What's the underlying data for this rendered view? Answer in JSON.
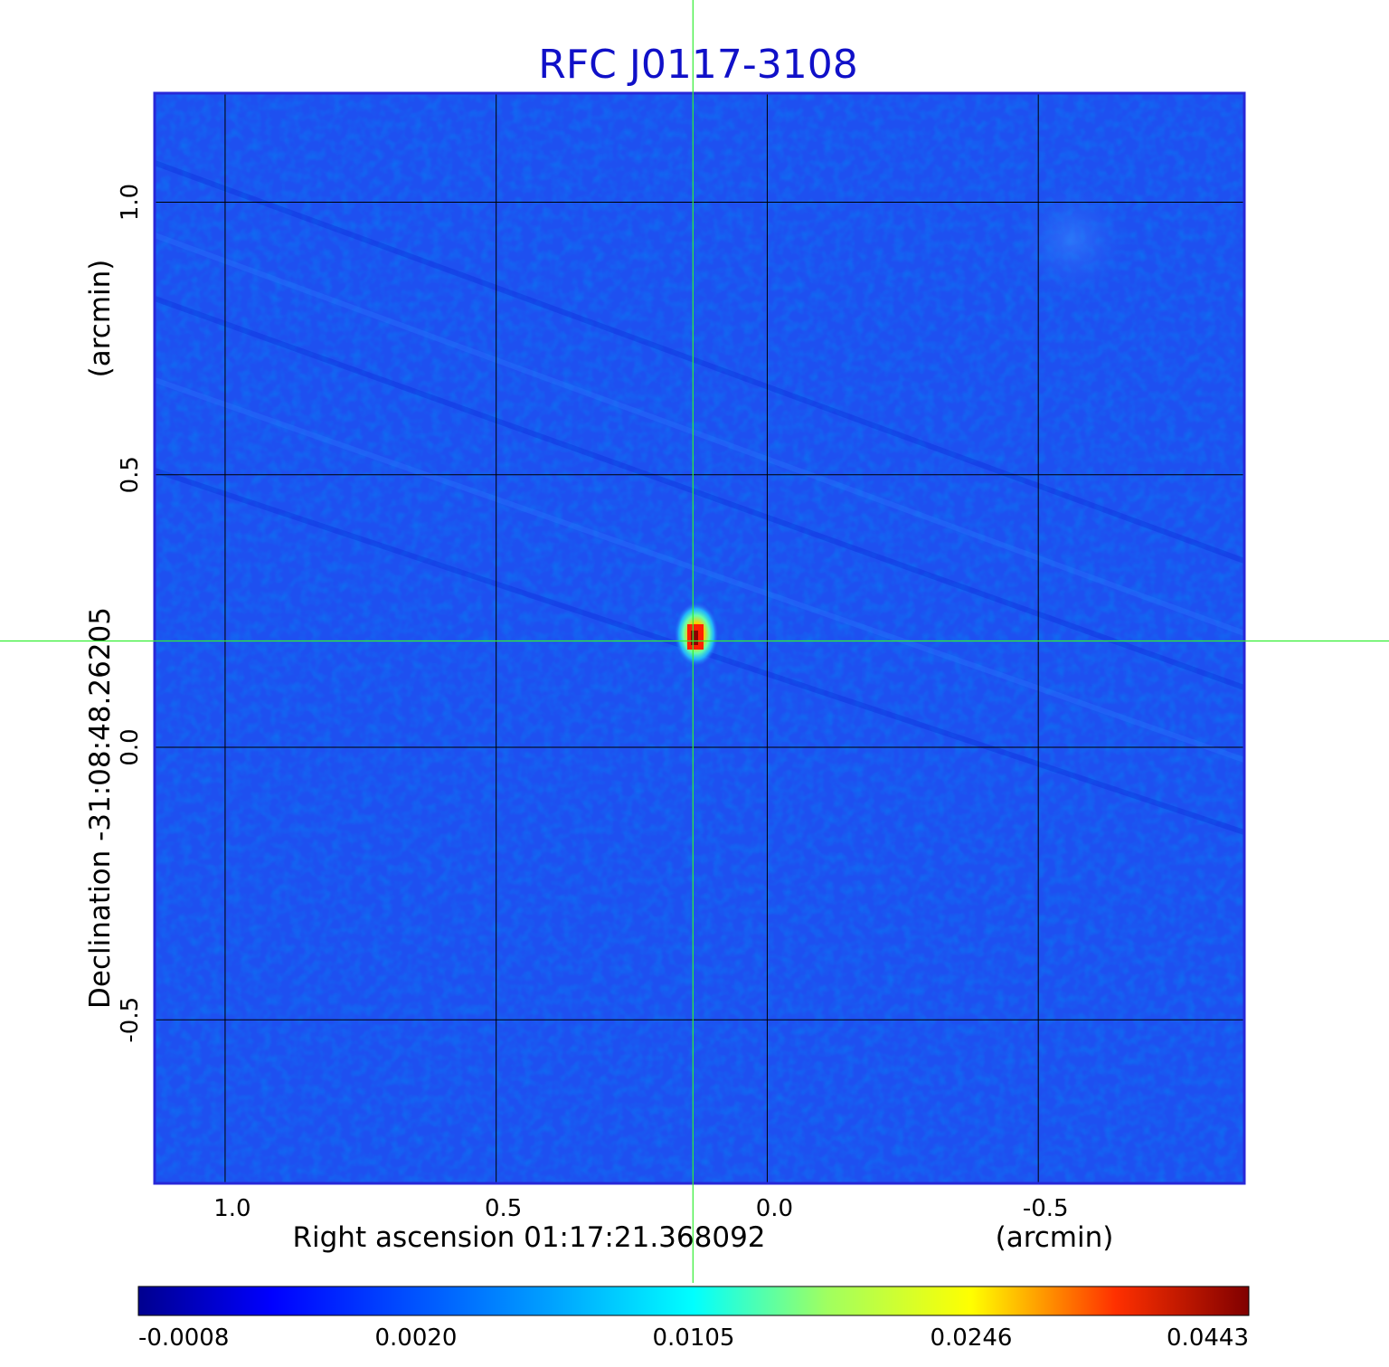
{
  "chart_data": {
    "type": "heatmap",
    "title": "RFC J0117-3108",
    "xlabel": "Right ascension  01:17:21.368092",
    "xunit": "(arcmin)",
    "ylabel": "Declination  -31:08:48.26205",
    "yunit": "(arcmin)",
    "xlim": [
      1.13,
      -0.88
    ],
    "ylim": [
      -0.8,
      1.2
    ],
    "x_ticks": [
      "1.0",
      "0.5",
      "0.0",
      "-0.5"
    ],
    "x_tick_values": [
      1.0,
      0.5,
      0.0,
      -0.5
    ],
    "y_ticks": [
      "-0.5",
      "0.0",
      "0.5",
      "1.0"
    ],
    "y_tick_values": [
      -0.5,
      0.0,
      0.5,
      1.0
    ],
    "grid": true,
    "crosshair": {
      "x": 0.137,
      "y": 0.195
    },
    "peak": {
      "x": 0.137,
      "y": 0.2
    },
    "background_color": "#1e50f0",
    "colorbar": {
      "ticks": [
        "-0.0008",
        "0.0020",
        "0.0105",
        "0.0246",
        "0.0443"
      ],
      "colors": [
        "#00008f",
        "#0000ff",
        "#00ffff",
        "#ffff00",
        "#ff0000",
        "#800000"
      ]
    }
  }
}
